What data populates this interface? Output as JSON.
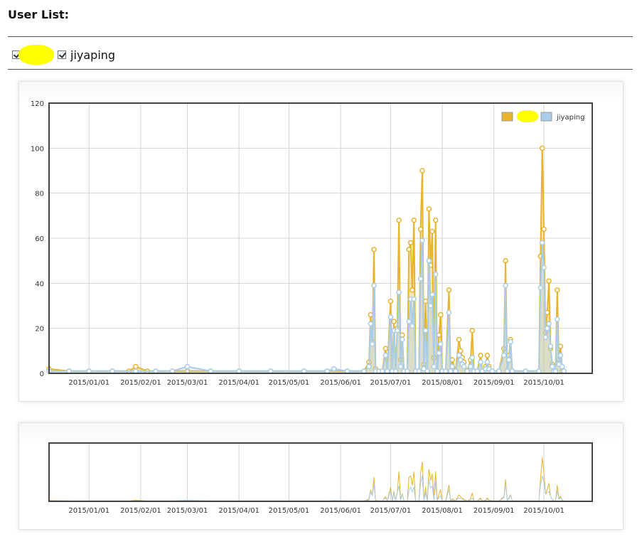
{
  "page": {
    "title": "User List:"
  },
  "users": [
    {
      "label": "",
      "checked": true,
      "redacted": true
    },
    {
      "label": "jiyaping",
      "checked": true,
      "redacted": false
    }
  ],
  "colors": {
    "series_a": "#e8b42e",
    "series_b": "#a8cde8",
    "grid": "#d4d4d4",
    "frame": "#444444"
  },
  "chart_data": [
    {
      "type": "line",
      "role": "main",
      "y_ticks": [
        "0",
        "20",
        "40",
        "60",
        "80",
        "100",
        "120"
      ],
      "ylim": [
        0,
        120
      ],
      "x_ticks": [
        "2015/01/01",
        "2015/02/01",
        "2015/03/01",
        "2015/04/01",
        "2015/05/01",
        "2015/06/01",
        "2015/07/01",
        "2015/08/01",
        "2015/09/01",
        "2015/10/01"
      ],
      "x_tick_dates": [
        "2015-01-01",
        "2015-02-01",
        "2015-03-01",
        "2015-04-01",
        "2015-05-01",
        "2015-06-01",
        "2015-07-01",
        "2015-08-01",
        "2015-09-01",
        "2015-10-01"
      ],
      "xlim": [
        "2014-12-08",
        "2015-10-30"
      ],
      "grid": true,
      "legend": {
        "position": "top-right",
        "entries": [
          {
            "name": "",
            "redacted": true
          },
          {
            "name": "jiyaping",
            "redacted": false
          }
        ]
      },
      "series": [
        {
          "name": "",
          "points": [
            [
              "2014-12-08",
              2
            ],
            [
              "2014-12-20",
              1
            ],
            [
              "2015-01-01",
              1
            ],
            [
              "2015-01-15",
              1
            ],
            [
              "2015-01-25",
              1
            ],
            [
              "2015-01-29",
              3
            ],
            [
              "2015-02-05",
              1
            ],
            [
              "2015-02-20",
              1
            ],
            [
              "2015-03-01",
              1
            ],
            [
              "2015-03-15",
              1
            ],
            [
              "2015-04-01",
              1
            ],
            [
              "2015-04-20",
              1
            ],
            [
              "2015-05-10",
              1
            ],
            [
              "2015-05-24",
              1
            ],
            [
              "2015-06-05",
              1
            ],
            [
              "2015-06-15",
              1
            ],
            [
              "2015-06-18",
              5
            ],
            [
              "2015-06-19",
              26
            ],
            [
              "2015-06-20",
              14
            ],
            [
              "2015-06-21",
              55
            ],
            [
              "2015-06-22",
              2
            ],
            [
              "2015-06-24",
              1
            ],
            [
              "2015-06-26",
              1
            ],
            [
              "2015-06-28",
              11
            ],
            [
              "2015-06-29",
              1
            ],
            [
              "2015-07-01",
              32
            ],
            [
              "2015-07-02",
              1
            ],
            [
              "2015-07-03",
              23
            ],
            [
              "2015-07-04",
              1
            ],
            [
              "2015-07-05",
              20
            ],
            [
              "2015-07-06",
              68
            ],
            [
              "2015-07-07",
              6
            ],
            [
              "2015-07-08",
              17
            ],
            [
              "2015-07-09",
              1
            ],
            [
              "2015-07-11",
              1
            ],
            [
              "2015-07-12",
              55
            ],
            [
              "2015-07-13",
              58
            ],
            [
              "2015-07-14",
              37
            ],
            [
              "2015-07-15",
              68
            ],
            [
              "2015-07-16",
              1
            ],
            [
              "2015-07-18",
              1
            ],
            [
              "2015-07-19",
              64
            ],
            [
              "2015-07-20",
              90
            ],
            [
              "2015-07-21",
              4
            ],
            [
              "2015-07-22",
              32
            ],
            [
              "2015-07-23",
              1
            ],
            [
              "2015-07-24",
              73
            ],
            [
              "2015-07-25",
              48
            ],
            [
              "2015-07-26",
              63
            ],
            [
              "2015-07-27",
              7
            ],
            [
              "2015-07-28",
              68
            ],
            [
              "2015-07-29",
              1
            ],
            [
              "2015-07-30",
              17
            ],
            [
              "2015-07-31",
              26
            ],
            [
              "2015-08-01",
              1
            ],
            [
              "2015-08-03",
              1
            ],
            [
              "2015-08-05",
              37
            ],
            [
              "2015-08-06",
              1
            ],
            [
              "2015-08-07",
              6
            ],
            [
              "2015-08-09",
              1
            ],
            [
              "2015-08-11",
              15
            ],
            [
              "2015-08-12",
              10
            ],
            [
              "2015-08-13",
              7
            ],
            [
              "2015-08-14",
              5
            ],
            [
              "2015-08-16",
              1
            ],
            [
              "2015-08-18",
              6
            ],
            [
              "2015-08-19",
              19
            ],
            [
              "2015-08-20",
              1
            ],
            [
              "2015-08-22",
              1
            ],
            [
              "2015-08-24",
              8
            ],
            [
              "2015-08-25",
              1
            ],
            [
              "2015-08-27",
              3
            ],
            [
              "2015-08-28",
              8
            ],
            [
              "2015-08-29",
              3
            ],
            [
              "2015-08-31",
              1
            ],
            [
              "2015-09-04",
              1
            ],
            [
              "2015-09-07",
              11
            ],
            [
              "2015-09-08",
              50
            ],
            [
              "2015-09-09",
              1
            ],
            [
              "2015-09-10",
              8
            ],
            [
              "2015-09-11",
              15
            ],
            [
              "2015-09-12",
              1
            ],
            [
              "2015-09-20",
              1
            ],
            [
              "2015-09-28",
              1
            ],
            [
              "2015-09-29",
              52
            ],
            [
              "2015-09-30",
              100
            ],
            [
              "2015-10-01",
              64
            ],
            [
              "2015-10-02",
              18
            ],
            [
              "2015-10-03",
              27
            ],
            [
              "2015-10-04",
              41
            ],
            [
              "2015-10-05",
              11
            ],
            [
              "2015-10-06",
              4
            ],
            [
              "2015-10-07",
              1
            ],
            [
              "2015-10-08",
              1
            ],
            [
              "2015-10-09",
              37
            ],
            [
              "2015-10-10",
              6
            ],
            [
              "2015-10-11",
              12
            ],
            [
              "2015-10-12",
              1
            ],
            [
              "2015-10-13",
              1
            ]
          ]
        },
        {
          "name": "jiyaping",
          "points": [
            [
              "2014-12-08",
              1
            ],
            [
              "2014-12-20",
              1
            ],
            [
              "2015-01-01",
              1
            ],
            [
              "2015-01-15",
              1
            ],
            [
              "2015-01-29",
              1
            ],
            [
              "2015-02-10",
              1
            ],
            [
              "2015-02-20",
              1
            ],
            [
              "2015-03-01",
              3
            ],
            [
              "2015-03-15",
              1
            ],
            [
              "2015-04-01",
              1
            ],
            [
              "2015-04-20",
              1
            ],
            [
              "2015-05-10",
              1
            ],
            [
              "2015-05-24",
              1
            ],
            [
              "2015-05-28",
              2
            ],
            [
              "2015-06-05",
              1
            ],
            [
              "2015-06-15",
              1
            ],
            [
              "2015-06-18",
              3
            ],
            [
              "2015-06-19",
              22
            ],
            [
              "2015-06-20",
              13
            ],
            [
              "2015-06-21",
              39
            ],
            [
              "2015-06-22",
              1
            ],
            [
              "2015-06-24",
              1
            ],
            [
              "2015-06-26",
              1
            ],
            [
              "2015-06-28",
              8
            ],
            [
              "2015-06-29",
              1
            ],
            [
              "2015-07-01",
              25
            ],
            [
              "2015-07-02",
              1
            ],
            [
              "2015-07-03",
              19
            ],
            [
              "2015-07-04",
              1
            ],
            [
              "2015-07-05",
              19
            ],
            [
              "2015-07-06",
              36
            ],
            [
              "2015-07-07",
              3
            ],
            [
              "2015-07-08",
              15
            ],
            [
              "2015-07-09",
              1
            ],
            [
              "2015-07-11",
              1
            ],
            [
              "2015-07-12",
              23
            ],
            [
              "2015-07-13",
              33
            ],
            [
              "2015-07-14",
              21
            ],
            [
              "2015-07-15",
              33
            ],
            [
              "2015-07-16",
              1
            ],
            [
              "2015-07-18",
              1
            ],
            [
              "2015-07-19",
              42
            ],
            [
              "2015-07-20",
              59
            ],
            [
              "2015-07-21",
              2
            ],
            [
              "2015-07-22",
              19
            ],
            [
              "2015-07-23",
              1
            ],
            [
              "2015-07-24",
              50
            ],
            [
              "2015-07-25",
              30
            ],
            [
              "2015-07-26",
              35
            ],
            [
              "2015-07-27",
              3
            ],
            [
              "2015-07-28",
              44
            ],
            [
              "2015-07-29",
              1
            ],
            [
              "2015-07-30",
              9
            ],
            [
              "2015-07-31",
              13
            ],
            [
              "2015-08-01",
              1
            ],
            [
              "2015-08-03",
              1
            ],
            [
              "2015-08-05",
              27
            ],
            [
              "2015-08-06",
              1
            ],
            [
              "2015-08-07",
              3
            ],
            [
              "2015-08-09",
              1
            ],
            [
              "2015-08-11",
              8
            ],
            [
              "2015-08-12",
              6
            ],
            [
              "2015-08-13",
              4
            ],
            [
              "2015-08-14",
              3
            ],
            [
              "2015-08-16",
              1
            ],
            [
              "2015-08-18",
              3
            ],
            [
              "2015-08-19",
              7
            ],
            [
              "2015-08-20",
              1
            ],
            [
              "2015-08-22",
              1
            ],
            [
              "2015-08-24",
              5
            ],
            [
              "2015-08-25",
              1
            ],
            [
              "2015-08-27",
              2
            ],
            [
              "2015-08-28",
              5
            ],
            [
              "2015-08-29",
              2
            ],
            [
              "2015-08-31",
              1
            ],
            [
              "2015-09-04",
              1
            ],
            [
              "2015-09-07",
              8
            ],
            [
              "2015-09-08",
              39
            ],
            [
              "2015-09-09",
              1
            ],
            [
              "2015-09-10",
              6
            ],
            [
              "2015-09-11",
              14
            ],
            [
              "2015-09-12",
              1
            ],
            [
              "2015-09-20",
              1
            ],
            [
              "2015-09-28",
              1
            ],
            [
              "2015-09-29",
              38
            ],
            [
              "2015-09-30",
              58
            ],
            [
              "2015-10-01",
              47
            ],
            [
              "2015-10-02",
              16
            ],
            [
              "2015-10-03",
              20
            ],
            [
              "2015-10-04",
              22
            ],
            [
              "2015-10-05",
              12
            ],
            [
              "2015-10-06",
              3
            ],
            [
              "2015-10-07",
              1
            ],
            [
              "2015-10-08",
              1
            ],
            [
              "2015-10-09",
              24
            ],
            [
              "2015-10-10",
              4
            ],
            [
              "2015-10-11",
              8
            ],
            [
              "2015-10-12",
              3
            ],
            [
              "2015-10-13",
              1
            ]
          ]
        }
      ]
    },
    {
      "type": "line",
      "role": "overview",
      "x_ticks": [
        "2015/01/01",
        "2015/02/01",
        "2015/03/01",
        "2015/04/01",
        "2015/05/01",
        "2015/06/01",
        "2015/07/01",
        "2015/08/01",
        "2015/09/01",
        "2015/10/01"
      ],
      "grid": true,
      "uses_series_of": "main"
    }
  ]
}
